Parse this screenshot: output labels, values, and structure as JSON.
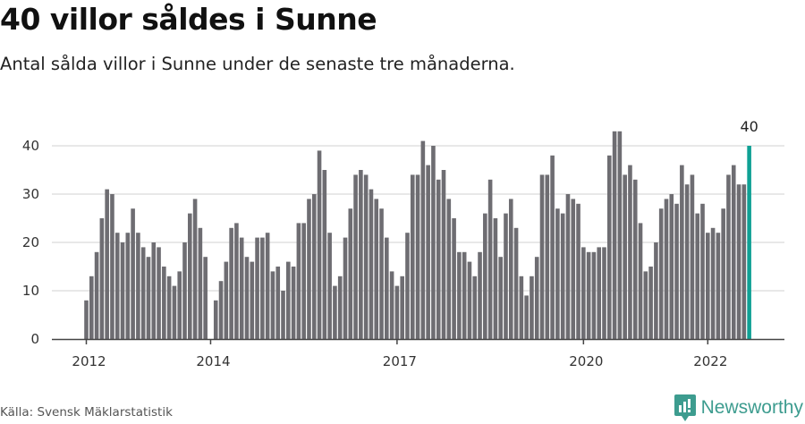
{
  "header": {
    "title": "40 villor såldes i Sunne",
    "subtitle": "Antal sålda villor i Sunne under de senaste tre månaderna."
  },
  "footer": {
    "source": "Källa: Svensk Mäklarstatistik",
    "brand": "Newsworthy",
    "brand_icon": "bar-chart-speech-bubble-icon"
  },
  "colors": {
    "bar": "#6e6d72",
    "highlight": "#0fa195",
    "grid": "#e0e0e0",
    "axis": "#444444",
    "brand": "#3d9c8f"
  },
  "chart_data": {
    "type": "bar",
    "title": "40 villor såldes i Sunne",
    "subtitle": "Antal sålda villor i Sunne under de senaste tre månaderna.",
    "xlabel": "",
    "ylabel": "",
    "ylim": [
      0,
      45
    ],
    "yticks": [
      0,
      10,
      20,
      30,
      40
    ],
    "grid": true,
    "legend": null,
    "x_start": "2012-01",
    "x_frequency": "monthly",
    "xtick_labels": [
      {
        "label": "2012",
        "index": 0
      },
      {
        "label": "2014",
        "index": 24
      },
      {
        "label": "2017",
        "index": 60
      },
      {
        "label": "2020",
        "index": 96
      },
      {
        "label": "2022",
        "index": 120
      }
    ],
    "annotation": {
      "index": 128,
      "text": "40"
    },
    "highlight_index": 128,
    "values": [
      8,
      13,
      18,
      25,
      31,
      30,
      22,
      20,
      22,
      27,
      22,
      19,
      17,
      20,
      19,
      15,
      13,
      11,
      14,
      20,
      26,
      29,
      23,
      17,
      0,
      8,
      12,
      16,
      23,
      24,
      21,
      17,
      16,
      21,
      21,
      22,
      14,
      15,
      10,
      16,
      15,
      24,
      24,
      29,
      30,
      39,
      35,
      22,
      11,
      13,
      21,
      27,
      34,
      35,
      34,
      31,
      29,
      27,
      21,
      14,
      11,
      13,
      22,
      34,
      34,
      41,
      36,
      40,
      33,
      35,
      29,
      25,
      18,
      18,
      16,
      13,
      18,
      26,
      33,
      25,
      17,
      26,
      29,
      23,
      13,
      9,
      13,
      17,
      34,
      34,
      38,
      27,
      26,
      30,
      29,
      28,
      19,
      18,
      18,
      19,
      19,
      38,
      43,
      43,
      34,
      36,
      33,
      24,
      14,
      15,
      20,
      27,
      29,
      30,
      28,
      36,
      32,
      34,
      26,
      28,
      22,
      23,
      22,
      27,
      34,
      36,
      32,
      32,
      40
    ]
  }
}
